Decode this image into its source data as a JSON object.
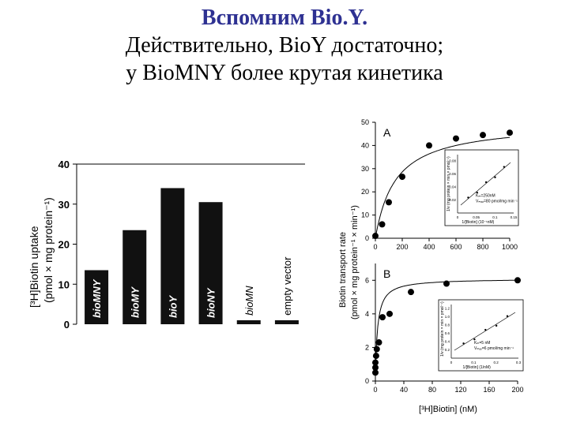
{
  "slide": {
    "title_line1": "Вспомним Bio.Y.",
    "title_line2": "Действительно, BioY достаточно;",
    "title_line3": "у BioMNY более крутая кинетика",
    "accent_color": "#2e3192"
  },
  "chart_data": [
    {
      "type": "bar",
      "categories": [
        "bioMNY",
        "bioMY",
        "bioY",
        "bioNY",
        "bioMN",
        "empty vector"
      ],
      "values": [
        13.5,
        23.5,
        34,
        30.5,
        1,
        1
      ],
      "ylim": [
        0,
        40
      ],
      "yticks": [
        "0",
        "10",
        "20",
        "30",
        "40"
      ],
      "ylabel_line1": "[³H]Biotin uptake",
      "ylabel_line2": "(pmol × mg protein⁻¹)",
      "bar_color": "#111111"
    },
    {
      "type": "scatter",
      "panel_label": "A",
      "x": [
        0,
        50,
        100,
        200,
        400,
        600,
        800,
        1000
      ],
      "y": [
        1,
        6,
        15.5,
        26.5,
        40,
        43,
        44.5,
        45.5
      ],
      "xlim": [
        0,
        1000
      ],
      "ylim": [
        0,
        50
      ],
      "xticks": [
        "0",
        "200",
        "400",
        "600",
        "800",
        "1000"
      ],
      "yticks": [
        "0",
        "10",
        "20",
        "30",
        "40",
        "50"
      ],
      "inset": {
        "x_label": "1/[Biotin] (10⁻¹nM)",
        "y_label": "1/v (mg protein × min × pmol⁻¹)",
        "xticks": [
          "0",
          "0.05",
          "0.1",
          "0.15"
        ],
        "yticks": [
          "0.02",
          "0.04",
          "0.06",
          "0.08"
        ],
        "annotation_line1": "Kₘ=250nM",
        "annotation_line2": "Vₘₐₓ=80 pmol/mg min⁻¹"
      }
    },
    {
      "type": "scatter",
      "panel_label": "B",
      "x": [
        0,
        0,
        0,
        1,
        2,
        5,
        10,
        20,
        50,
        100,
        200
      ],
      "y": [
        0.5,
        0.8,
        1.1,
        1.5,
        1.9,
        2.3,
        3.8,
        4,
        5.3,
        5.8,
        6
      ],
      "xlim": [
        0,
        200
      ],
      "ylim": [
        0,
        7
      ],
      "xticks": [
        "0",
        "40",
        "80",
        "120",
        "160",
        "200"
      ],
      "yticks": [
        "0",
        "2",
        "4",
        "6"
      ],
      "inset": {
        "x_label": "1/[Biotin] (1/nM)",
        "y_label": "1/v (mg protein × min × pmol⁻¹)",
        "xticks": [
          "0",
          "0.1",
          "0.2",
          "0.3"
        ],
        "yticks": [
          "0.2",
          "0.4",
          "0.6",
          "0.8",
          "1.0",
          "1.2"
        ],
        "annotation_line1": "Kₘ=5 nM",
        "annotation_line2": "Vₘₐₓ=6 pmol/mg min⁻¹"
      }
    }
  ],
  "shared_axes": {
    "ylabel_line1": "Biotin transport rate",
    "ylabel_line2": "(pmol × mg protein⁻¹ × min⁻¹)",
    "xlabel": "[³H]Biotin] (nM)"
  }
}
